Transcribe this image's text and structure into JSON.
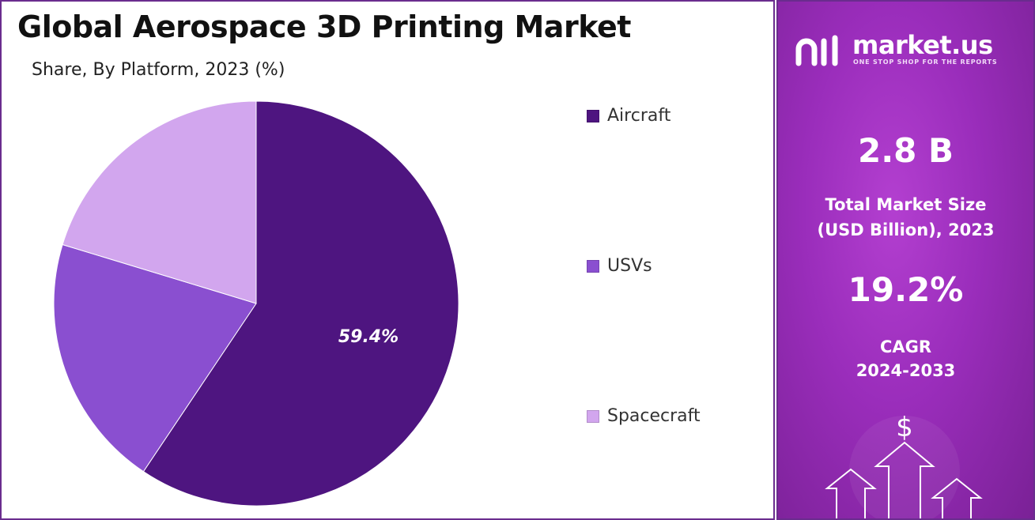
{
  "chart_data": {
    "type": "pie",
    "title": "Global Aerospace 3D Printing Market",
    "subtitle": "Share, By Platform, 2023 (%)",
    "categories": [
      "Aircraft",
      "USVs",
      "Spacecraft"
    ],
    "values": [
      59.4,
      20.3,
      20.3
    ],
    "colors": [
      "#4e1580",
      "#8a4fd0",
      "#d2a6ee"
    ],
    "data_labels": [
      "59.4%",
      "",
      ""
    ],
    "legend_position": "right"
  },
  "sidebar": {
    "brand_name": "market.us",
    "brand_tagline": "ONE STOP SHOP FOR THE REPORTS",
    "market_size_value": "2.8 B",
    "market_size_label_line1": "Total Market Size",
    "market_size_label_line2": "(USD Billion), 2023",
    "cagr_value": "19.2%",
    "cagr_label_line1": "CAGR",
    "cagr_label_line2": "2024-2033",
    "currency_symbol": "$"
  }
}
